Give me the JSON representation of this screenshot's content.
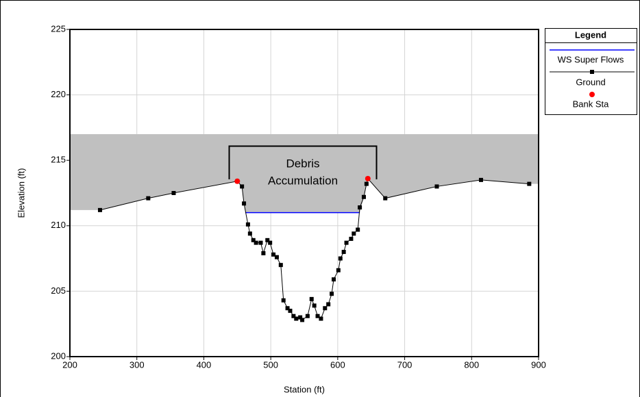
{
  "chart_data": {
    "type": "cross-section",
    "xlabel": "Station (ft)",
    "ylabel": "Elevation (ft)",
    "xlim": [
      200,
      900
    ],
    "ylim": [
      200,
      225
    ],
    "xticks": [
      200,
      300,
      400,
      500,
      600,
      700,
      800,
      900
    ],
    "yticks": [
      200,
      205,
      210,
      215,
      220,
      225
    ],
    "grid": true,
    "legend_title": "Legend",
    "legend_position": "right",
    "annotation": [
      "Debris",
      "Accumulation"
    ],
    "blocked": {
      "top": 217,
      "color": "#c0c0c0"
    },
    "series": [
      {
        "name": "WS Super Flows",
        "color": "#0000ff",
        "x": [
          462,
          633
        ],
        "values": [
          211,
          211
        ]
      },
      {
        "name": "Ground",
        "color": "#000000",
        "x": [
          245,
          317,
          355,
          450,
          457,
          460,
          466,
          469,
          474,
          478,
          485,
          489,
          495,
          499,
          504,
          509,
          515,
          519,
          525,
          529,
          534,
          538,
          544,
          547,
          555,
          561,
          565,
          570,
          575,
          581,
          586,
          591,
          594,
          601,
          604,
          609,
          613,
          620,
          624,
          630,
          633,
          639,
          643,
          645,
          671,
          748,
          814,
          886
        ],
        "values": [
          211.2,
          212.1,
          212.5,
          213.4,
          213.0,
          211.7,
          210.1,
          209.4,
          208.9,
          208.7,
          208.7,
          207.9,
          208.9,
          208.7,
          207.8,
          207.6,
          207.0,
          204.3,
          203.7,
          203.5,
          203.1,
          202.9,
          203.0,
          202.8,
          203.1,
          204.4,
          203.9,
          203.1,
          202.9,
          203.7,
          204.0,
          204.8,
          205.9,
          206.6,
          207.5,
          208.0,
          208.7,
          209.0,
          209.4,
          209.7,
          211.4,
          212.2,
          213.2,
          213.6,
          212.1,
          213.0,
          213.5,
          213.2
        ]
      },
      {
        "name": "Bank Sta",
        "color": "#ff0000",
        "x": [
          450,
          645
        ],
        "values": [
          213.4,
          213.6
        ]
      }
    ]
  }
}
